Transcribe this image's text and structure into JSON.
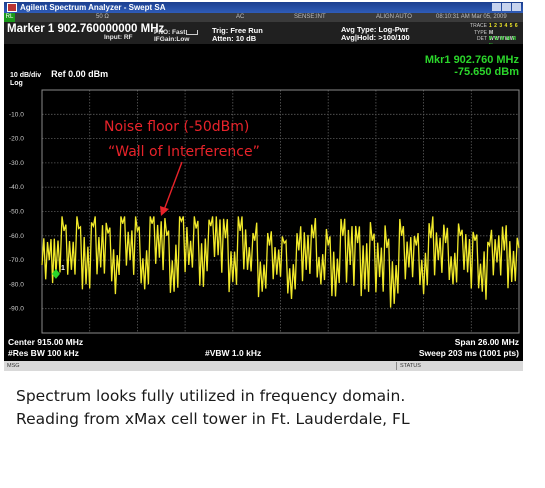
{
  "window": {
    "title": "Agilent Spectrum Analyzer - Swept SA"
  },
  "status_strip": {
    "items": [
      "50 Ω",
      "AC",
      "SENSE:INT",
      "ALIGN AUTO",
      "08:10:31 AM Mar 05, 2009"
    ]
  },
  "settings": {
    "marker_label": "Marker 1  902.760000000 MHz",
    "input": "Input: RF",
    "pno": "PNO: Fast",
    "ifgain": "IFGain:Low",
    "trig": "Trig: Free Run",
    "atten": "Atten: 10 dB",
    "avg_type": "Avg Type: Log-Pwr",
    "avg_hold": "Avg|Hold: >100/100",
    "trace_labels": [
      "TRACE",
      "TYPE",
      "DET"
    ],
    "trace_values": [
      "1 2 3 4 5 6",
      "M WWWWW",
      "P S N N N N"
    ]
  },
  "plot": {
    "scale": "10 dB/div",
    "ref": "Ref 0.00 dBm",
    "log": "Log",
    "marker_readout_freq": "Mkr1 902.760 MHz",
    "marker_readout_level": "-75.650 dBm",
    "marker_number": "1",
    "annotation_line1": "Noise floor (-50dBm)",
    "annotation_line2": "“Wall of  Interference”",
    "trace_color": "#f2ea2a",
    "annotation_color": "#e8232a",
    "marker_color": "#2bd52b"
  },
  "chart_data": {
    "type": "line",
    "yunit": "dBm",
    "ylim": [
      -100,
      0
    ],
    "y_divisions": 10,
    "y_tick_labels": [
      "-10.0",
      "-20.0",
      "-30.0",
      "-40.0",
      "-50.0",
      "-60.0",
      "-70.0",
      "-80.0",
      "-90.0"
    ],
    "x_center": "Center 915.00 MHz",
    "x_span": "Span 26.00 MHz",
    "xlim_mhz": [
      902.0,
      928.0
    ],
    "marker": {
      "x_mhz": 902.76,
      "y_dbm": -75.65
    },
    "series": [
      {
        "x_mhz": [
          902.0,
          902.4,
          902.76,
          903.2,
          903.6,
          904.0,
          904.4,
          904.8,
          905.2,
          905.6,
          906.0,
          906.4,
          906.8,
          907.2,
          907.6,
          908.0,
          908.4,
          908.8,
          909.2,
          909.6,
          910.0,
          910.4,
          910.8,
          911.2,
          911.6,
          912.0,
          912.4,
          912.8,
          913.2,
          913.6,
          914.0,
          914.4,
          914.8,
          915.2,
          915.6,
          916.0,
          916.4,
          916.8,
          917.2,
          917.6,
          918.0,
          918.4,
          918.8,
          919.2,
          919.6,
          920.0,
          920.4,
          920.8,
          921.2,
          921.6,
          922.0,
          922.4,
          922.8,
          923.2,
          923.6,
          924.0,
          924.4,
          924.8,
          925.2,
          925.6,
          926.0,
          926.4,
          926.8,
          927.2,
          927.6,
          928.0
        ],
        "y_dbm": [
          -72,
          -70,
          -75.65,
          -58,
          -74,
          -57,
          -80,
          -56,
          -73,
          -59,
          -84,
          -55,
          -70,
          -58,
          -82,
          -55,
          -69,
          -60,
          -83,
          -54,
          -72,
          -57,
          -81,
          -56,
          -68,
          -61,
          -79,
          -58,
          -74,
          -62,
          -83,
          -64,
          -76,
          -63,
          -86,
          -66,
          -74,
          -61,
          -80,
          -64,
          -85,
          -60,
          -72,
          -63,
          -82,
          -62,
          -77,
          -65,
          -88,
          -60,
          -73,
          -64,
          -84,
          -61,
          -70,
          -63,
          -80,
          -60,
          -75,
          -62,
          -83,
          -64,
          -71,
          -66,
          -79,
          -65
        ]
      }
    ]
  },
  "bottom": {
    "center": "Center 915.00 MHz",
    "res_bw": "#Res BW 100 kHz",
    "vbw": "#VBW 1.0 kHz",
    "span": "Span 26.00 MHz",
    "sweep": "Sweep  203 ms (1001 pts)"
  },
  "msgbar": {
    "msg": "MSG",
    "status": "STATUS"
  },
  "caption": {
    "line1": "Spectrum looks fully utilized in frequency domain.",
    "line2": "Reading from xMax cell tower in Ft. Lauderdale, FL"
  }
}
